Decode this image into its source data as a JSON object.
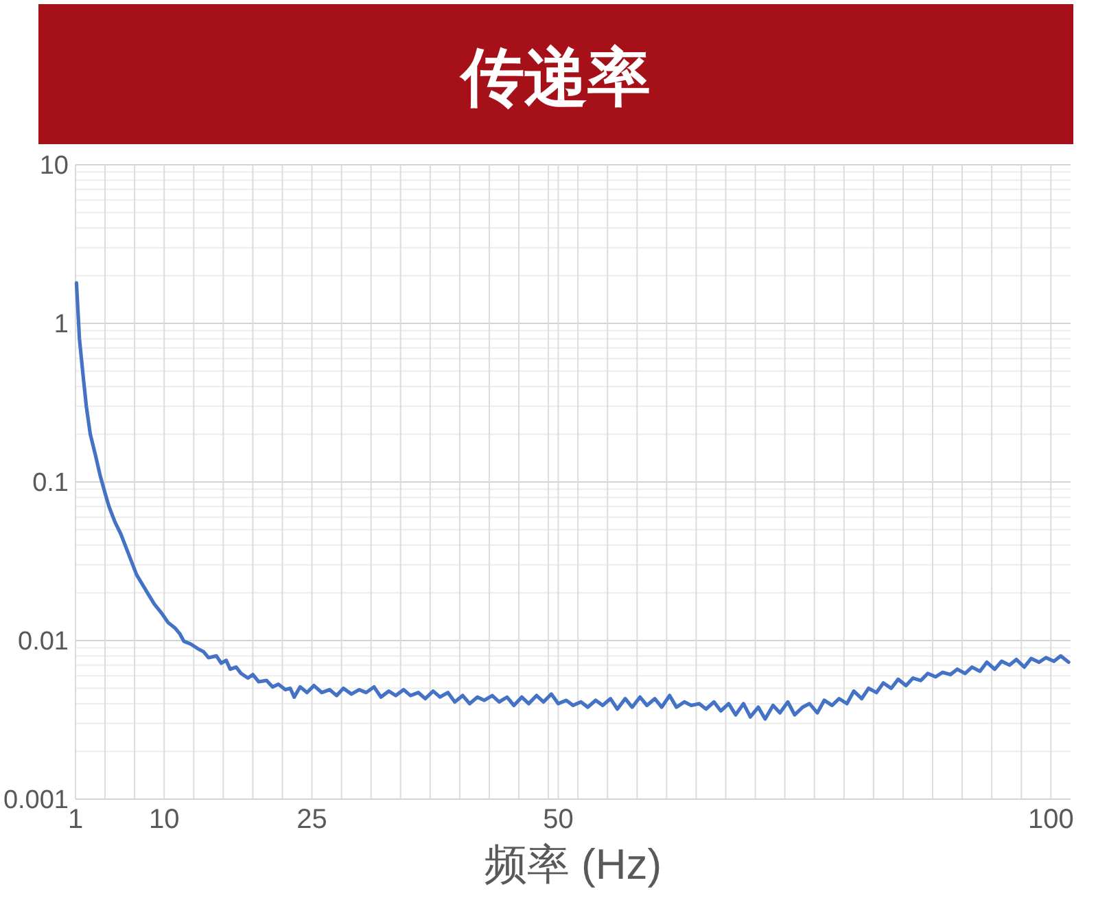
{
  "chart_data": {
    "type": "line",
    "title": "传递率",
    "xlabel": "频率 (Hz)",
    "x": [
      1.1,
      1.4,
      1.8,
      2.1,
      2.5,
      3,
      3.5,
      4,
      4.4,
      5,
      5.6,
      6.4,
      7.2,
      8.3,
      9,
      9.7,
      10.4,
      11.1,
      11.6,
      12,
      12.7,
      13.4,
      14,
      14.5,
      15.3,
      15.8,
      16.3,
      16.7,
      17.3,
      17.8,
      18.5,
      19,
      19.6,
      20.4,
      21,
      21.6,
      22.3,
      22.8,
      23.2,
      23.8,
      24.5,
      25.2,
      26,
      26.8,
      27.5,
      28.2,
      29,
      29.8,
      30.5,
      31.3,
      32,
      32.8,
      33.5,
      34.3,
      35,
      35.8,
      36.5,
      37.3,
      38,
      38.8,
      39.5,
      40.3,
      41,
      41.8,
      42.5,
      43.3,
      44,
      44.8,
      45.5,
      46.3,
      47,
      47.8,
      48.5,
      49.3,
      50,
      50.8,
      51.5,
      52.3,
      53,
      53.8,
      54.5,
      55.3,
      56,
      56.8,
      57.5,
      58.3,
      59,
      59.8,
      60.5,
      61.3,
      62,
      62.8,
      63.5,
      64.3,
      65,
      65.8,
      66.5,
      67.3,
      68,
      68.8,
      69.5,
      70.3,
      71,
      71.8,
      72.5,
      73.3,
      74,
      74.8,
      75.5,
      76.3,
      77,
      77.8,
      78.5,
      79.3,
      80,
      80.8,
      81.5,
      82.3,
      83,
      83.8,
      84.5,
      85.3,
      86,
      86.8,
      87.5,
      88.3,
      89,
      89.8,
      90.5,
      91.3,
      92,
      92.8,
      93.5,
      94.3,
      95,
      95.8,
      96.5,
      97.3,
      98,
      98.8,
      99.5,
      100.3,
      101,
      101.8
    ],
    "series": [
      {
        "color": "#4472c4",
        "values": [
          1.8,
          0.8,
          0.45,
          0.3,
          0.2,
          0.15,
          0.11,
          0.085,
          0.07,
          0.056,
          0.047,
          0.035,
          0.026,
          0.02,
          0.017,
          0.015,
          0.013,
          0.012,
          0.011,
          0.0099,
          0.0095,
          0.0089,
          0.0085,
          0.0078,
          0.008,
          0.0072,
          0.0075,
          0.0066,
          0.0068,
          0.0062,
          0.0058,
          0.0061,
          0.0055,
          0.0056,
          0.0051,
          0.0053,
          0.0049,
          0.005,
          0.0044,
          0.0051,
          0.0047,
          0.0052,
          0.0047,
          0.0049,
          0.0045,
          0.005,
          0.0046,
          0.0049,
          0.0047,
          0.0051,
          0.0044,
          0.0048,
          0.0045,
          0.0049,
          0.0045,
          0.0047,
          0.0043,
          0.0048,
          0.0044,
          0.0047,
          0.0041,
          0.0045,
          0.004,
          0.0044,
          0.0042,
          0.0045,
          0.0041,
          0.0044,
          0.0039,
          0.0044,
          0.004,
          0.0045,
          0.0041,
          0.0046,
          0.004,
          0.0042,
          0.0039,
          0.0041,
          0.0038,
          0.0042,
          0.0039,
          0.0043,
          0.0037,
          0.0043,
          0.0038,
          0.0044,
          0.0039,
          0.0043,
          0.0038,
          0.0045,
          0.0038,
          0.0041,
          0.0039,
          0.004,
          0.0037,
          0.0041,
          0.0036,
          0.004,
          0.0034,
          0.004,
          0.0033,
          0.0038,
          0.0032,
          0.0039,
          0.0035,
          0.0041,
          0.0034,
          0.0038,
          0.004,
          0.0035,
          0.0042,
          0.0039,
          0.0043,
          0.004,
          0.0048,
          0.0043,
          0.005,
          0.0047,
          0.0054,
          0.005,
          0.0057,
          0.0052,
          0.0058,
          0.0056,
          0.0062,
          0.0059,
          0.0063,
          0.0061,
          0.0066,
          0.0062,
          0.0068,
          0.0064,
          0.0073,
          0.0066,
          0.0074,
          0.007,
          0.0076,
          0.0068,
          0.0077,
          0.0073,
          0.0078,
          0.0074,
          0.008,
          0.0073
        ]
      }
    ],
    "xlim": [
      1,
      102
    ],
    "xticks": [
      1,
      {
        "value": 4,
        "label": null
      },
      {
        "value": 7,
        "label": null
      },
      10,
      {
        "value": 13,
        "label": null
      },
      {
        "value": 16,
        "label": null
      },
      {
        "value": 19,
        "label": null
      },
      {
        "value": 22,
        "label": null
      },
      25,
      {
        "value": 28,
        "label": null
      },
      {
        "value": 31,
        "label": null
      },
      {
        "value": 34,
        "label": null
      },
      {
        "value": 37,
        "label": null
      },
      {
        "value": 40,
        "label": null
      },
      {
        "value": 43,
        "label": null
      },
      {
        "value": 46,
        "label": null
      },
      {
        "value": 49,
        "label": null
      },
      50,
      {
        "value": 52,
        "label": null
      },
      {
        "value": 55,
        "label": null
      },
      {
        "value": 58,
        "label": null
      },
      {
        "value": 61,
        "label": null
      },
      {
        "value": 64,
        "label": null
      },
      {
        "value": 67,
        "label": null
      },
      {
        "value": 70,
        "label": null
      },
      {
        "value": 73,
        "label": null
      },
      {
        "value": 76,
        "label": null
      },
      {
        "value": 79,
        "label": null
      },
      {
        "value": 82,
        "label": null
      },
      {
        "value": 85,
        "label": null
      },
      {
        "value": 88,
        "label": null
      },
      {
        "value": 91,
        "label": null
      },
      {
        "value": 94,
        "label": null
      },
      {
        "value": 97,
        "label": null
      },
      100
    ],
    "ylim": [
      0.001,
      10
    ],
    "yticks": [
      0.001,
      {
        "value": 0.002,
        "label": null
      },
      {
        "value": 0.003,
        "label": null
      },
      {
        "value": 0.004,
        "label": null
      },
      {
        "value": 0.005,
        "label": null
      },
      {
        "value": 0.006,
        "label": null
      },
      {
        "value": 0.007,
        "label": null
      },
      {
        "value": 0.008,
        "label": null
      },
      {
        "value": 0.009,
        "label": null
      },
      0.01,
      {
        "value": 0.02,
        "label": null
      },
      {
        "value": 0.03,
        "label": null
      },
      {
        "value": 0.04,
        "label": null
      },
      {
        "value": 0.05,
        "label": null
      },
      {
        "value": 0.06,
        "label": null
      },
      {
        "value": 0.07,
        "label": null
      },
      {
        "value": 0.08,
        "label": null
      },
      {
        "value": 0.09,
        "label": null
      },
      0.1,
      {
        "value": 0.2,
        "label": null
      },
      {
        "value": 0.3,
        "label": null
      },
      {
        "value": 0.4,
        "label": null
      },
      {
        "value": 0.5,
        "label": null
      },
      {
        "value": 0.6,
        "label": null
      },
      {
        "value": 0.7,
        "label": null
      },
      {
        "value": 0.8,
        "label": null
      },
      {
        "value": 0.9,
        "label": null
      },
      1,
      {
        "value": 2,
        "label": null
      },
      {
        "value": 3,
        "label": null
      },
      {
        "value": 4,
        "label": null
      },
      {
        "value": 5,
        "label": null
      },
      {
        "value": 6,
        "label": null
      },
      {
        "value": 7,
        "label": null
      },
      {
        "value": 8,
        "label": null
      },
      {
        "value": 9,
        "label": null
      },
      10
    ],
    "log": "y",
    "grid": true
  }
}
